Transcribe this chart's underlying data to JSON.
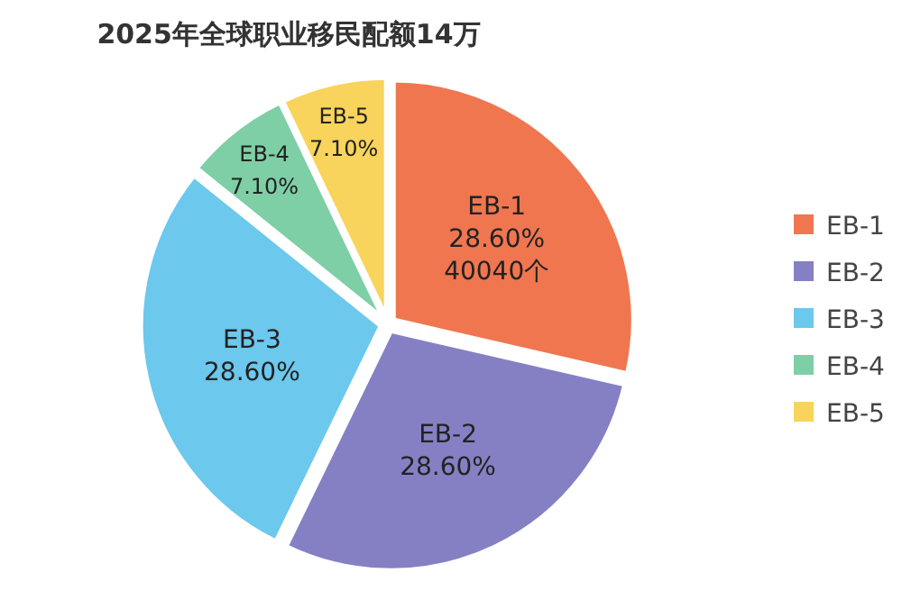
{
  "chart_data": {
    "type": "pie",
    "title": "2025年全球职业移民配额14万",
    "categories": [
      "EB-1",
      "EB-2",
      "EB-3",
      "EB-4",
      "EB-5"
    ],
    "values": [
      28.6,
      28.6,
      28.6,
      7.1,
      7.1
    ],
    "colors": [
      "#f07650",
      "#8580c4",
      "#6cc8ec",
      "#7fcfa6",
      "#f9d45c"
    ],
    "value_labels": [
      "28.60%",
      "28.60%",
      "28.60%",
      "7.10%",
      "7.10%"
    ],
    "annotations": [
      {
        "text": "40040个",
        "x": "EB-1"
      }
    ],
    "legend": "right"
  }
}
